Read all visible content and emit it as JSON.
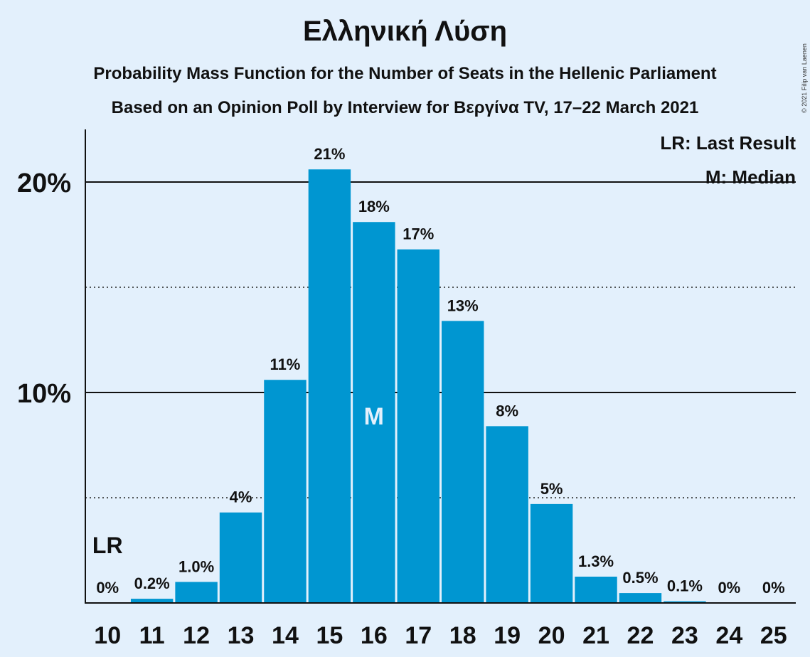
{
  "chart_data": {
    "type": "bar",
    "title": "Ελληνική Λύση",
    "subtitle": "Probability Mass Function for the Number of Seats in the Hellenic Parliament",
    "subtitle2": "Based on an Opinion Poll by Interview for Βεργίνα TV, 17–22 March 2021",
    "copyright": "© 2021 Filip van Laenen",
    "categories": [
      "10",
      "11",
      "12",
      "13",
      "14",
      "15",
      "16",
      "17",
      "18",
      "19",
      "20",
      "21",
      "22",
      "23",
      "24",
      "25"
    ],
    "values": [
      0,
      0.2,
      1.0,
      4.3,
      10.6,
      20.6,
      18.1,
      16.8,
      13.4,
      8.4,
      4.7,
      1.25,
      0.47,
      0.08,
      0,
      0
    ],
    "value_labels": [
      "0%",
      "0.2%",
      "1.0%",
      "4%",
      "11%",
      "21%",
      "18%",
      "17%",
      "13%",
      "8%",
      "5%",
      "1.3%",
      "0.5%",
      "0.1%",
      "0%",
      "0%"
    ],
    "ylim": [
      0,
      22.5
    ],
    "yticks": [
      {
        "value": 10,
        "label": "10%"
      },
      {
        "value": 20,
        "label": "20%"
      }
    ],
    "minor_gridlines": [
      5,
      15
    ],
    "bar_color": "#0096d1",
    "last_result": {
      "category": "10",
      "label": "LR"
    },
    "median": {
      "category": "16",
      "label": "M"
    },
    "legend": {
      "position": "top-right",
      "items": [
        "LR: Last Result",
        "M: Median"
      ]
    }
  }
}
